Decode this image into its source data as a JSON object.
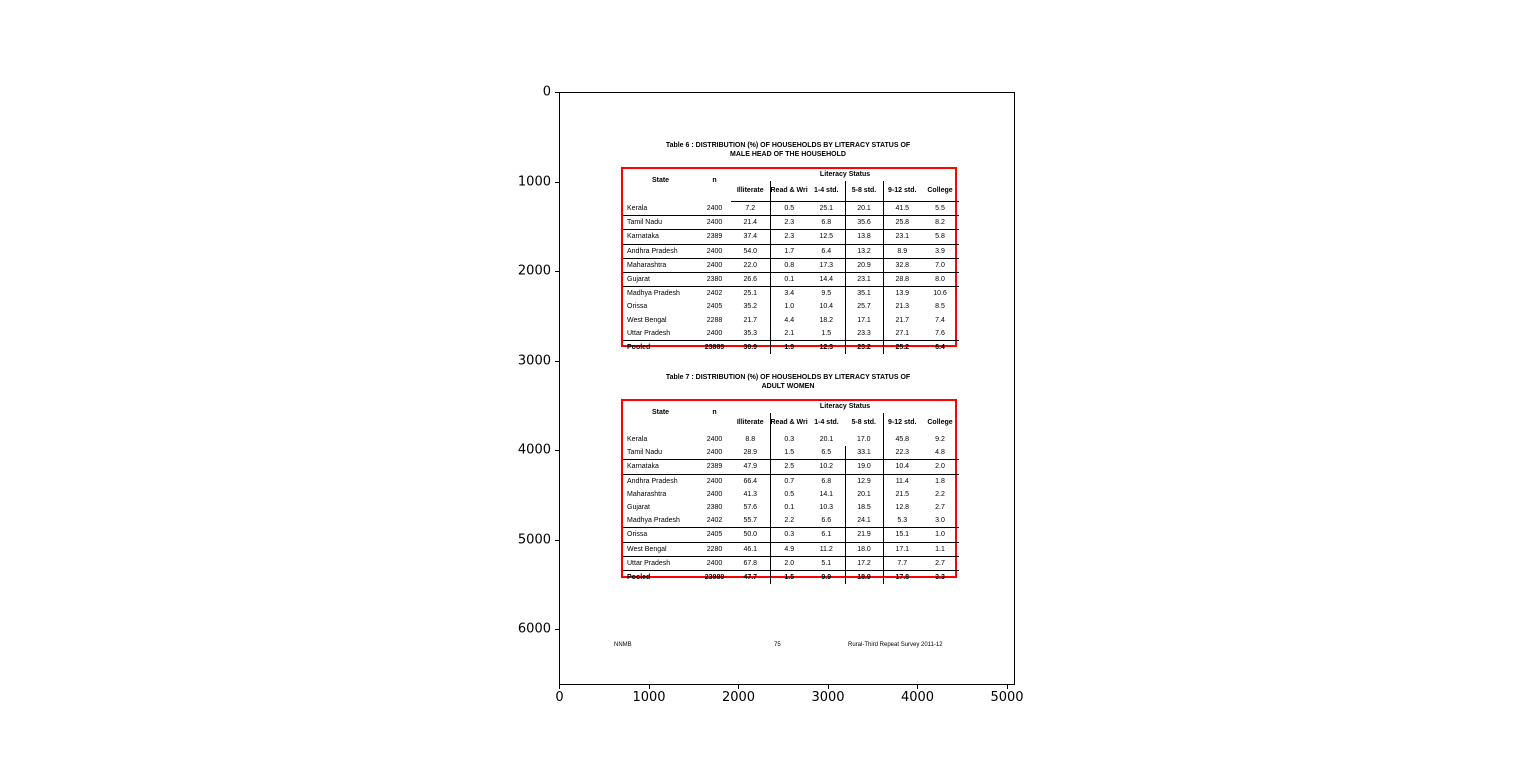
{
  "axes": {
    "x_ticks": [
      "0",
      "1000",
      "2000",
      "3000",
      "4000",
      "5000"
    ],
    "y_ticks": [
      "0",
      "1000",
      "2000",
      "3000",
      "4000",
      "5000",
      "6000"
    ]
  },
  "document": {
    "columns": {
      "state": "State",
      "n": "n",
      "group": "Literacy Status",
      "illiterate": "Illiterate",
      "read_write": "Read & Write",
      "std_1_4": "1-4 std.",
      "std_5_8": "5-8 std.",
      "std_9_12": "9-12 std.",
      "college": "College"
    },
    "table6": {
      "title_line1": "Table 6 : DISTRIBUTION (%) OF HOUSEHOLDS BY LITERACY STATUS OF",
      "title_line2": "MALE HEAD OF THE HOUSEHOLD",
      "rows": [
        [
          "Kerala",
          "2400",
          "7.2",
          "0.5",
          "25.1",
          "20.1",
          "41.5",
          "5.5"
        ],
        [
          "Tamil Nadu",
          "2400",
          "21.4",
          "2.3",
          "6.8",
          "35.6",
          "25.8",
          "8.2"
        ],
        [
          "Karnataka",
          "2389",
          "37.4",
          "2.3",
          "12.5",
          "13.8",
          "23.1",
          "5.8"
        ],
        [
          "Andhra Pradesh",
          "2400",
          "54.0",
          "1.7",
          "6.4",
          "13.2",
          "8.9",
          "3.9"
        ],
        [
          "Maharashtra",
          "2400",
          "22.0",
          "0.8",
          "17.3",
          "20.9",
          "32.8",
          "7.0"
        ],
        [
          "Gujarat",
          "2380",
          "26.6",
          "0.1",
          "14.4",
          "23.1",
          "28.8",
          "8.0"
        ],
        [
          "Madhya Pradesh",
          "2402",
          "25.1",
          "3.4",
          "9.5",
          "35.1",
          "13.9",
          "10.6"
        ],
        [
          "Orissa",
          "2405",
          "35.2",
          "1.0",
          "10.4",
          "25.7",
          "21.3",
          "8.5"
        ],
        [
          "West Bengal",
          "2288",
          "21.7",
          "4.4",
          "18.2",
          "17.1",
          "21.7",
          "7.4"
        ],
        [
          "Uttar Pradesh",
          "2400",
          "35.3",
          "2.1",
          "1.5",
          "23.3",
          "27.1",
          "7.6"
        ],
        [
          "Pooled",
          "23889",
          "30.9",
          "1.9",
          "12.3",
          "23.2",
          "25.2",
          "6.4"
        ]
      ]
    },
    "table7": {
      "title_line1": "Table 7 : DISTRIBUTION (%) OF HOUSEHOLDS BY LITERACY STATUS OF",
      "title_line2": "ADULT WOMEN",
      "rows": [
        [
          "Kerala",
          "2400",
          "8.8",
          "0.3",
          "20.1",
          "17.0",
          "45.8",
          "9.2"
        ],
        [
          "Tamil Nadu",
          "2400",
          "28.9",
          "1.5",
          "6.5",
          "33.1",
          "22.3",
          "4.8"
        ],
        [
          "Karnataka",
          "2389",
          "47.9",
          "2.5",
          "10.2",
          "19.0",
          "10.4",
          "2.0"
        ],
        [
          "Andhra Pradesh",
          "2400",
          "66.4",
          "0.7",
          "6.8",
          "12.9",
          "11.4",
          "1.8"
        ],
        [
          "Maharashtra",
          "2400",
          "41.3",
          "0.5",
          "14.1",
          "20.1",
          "21.5",
          "2.2"
        ],
        [
          "Gujarat",
          "2380",
          "57.6",
          "0.1",
          "10.3",
          "18.5",
          "12.8",
          "2.7"
        ],
        [
          "Madhya Pradesh",
          "2402",
          "55.7",
          "2.2",
          "6.6",
          "24.1",
          "5.3",
          "3.0"
        ],
        [
          "Orissa",
          "2405",
          "50.0",
          "0.3",
          "6.1",
          "21.9",
          "15.1",
          "1.0"
        ],
        [
          "West Bengal",
          "2280",
          "46.1",
          "4.9",
          "11.2",
          "18.0",
          "17.1",
          "1.1"
        ],
        [
          "Uttar Pradesh",
          "2400",
          "67.8",
          "2.0",
          "5.1",
          "17.2",
          "7.7",
          "2.7"
        ],
        [
          "Pooled",
          "23889",
          "47.7",
          "1.5",
          "9.9",
          "18.9",
          "17.8",
          "3.3"
        ]
      ]
    },
    "footer": {
      "left": "NNMB",
      "center": "75",
      "right": "Rural-Third Repeat Survey 2011-12"
    }
  }
}
